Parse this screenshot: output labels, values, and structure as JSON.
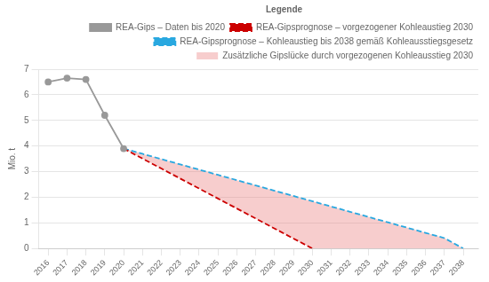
{
  "chart_data": {
    "type": "line",
    "y_label": "Mio. t",
    "legend_title": "Legende",
    "series": [
      {
        "name": "REA-Gips – Daten bis 2020",
        "color": "#999999",
        "line_style": "solid",
        "marker": "circle",
        "x": [
          2016,
          2017,
          2018,
          2019,
          2020
        ],
        "values": [
          6.5,
          6.65,
          6.6,
          5.2,
          3.9
        ]
      },
      {
        "name": "REA-Gipsprognose – vorgezogener Kohleaustieg 2030",
        "color": "#cc0000",
        "line_style": "dashed",
        "x": [
          2020,
          2021,
          2022,
          2023,
          2024,
          2025,
          2026,
          2027,
          2028,
          2029,
          2030
        ],
        "values": [
          3.9,
          3.51,
          3.12,
          2.73,
          2.34,
          1.95,
          1.56,
          1.17,
          0.78,
          0.39,
          0.0
        ]
      },
      {
        "name": "REA-Gipsprognose – Kohleaustieg bis 2038 gemäß Kohleausstiegsgesetz",
        "color": "#29a8e0",
        "line_style": "dashed",
        "x": [
          2020,
          2021,
          2022,
          2023,
          2024,
          2025,
          2026,
          2027,
          2028,
          2029,
          2030,
          2031,
          2032,
          2033,
          2034,
          2035,
          2036,
          2037,
          2038
        ],
        "values": [
          3.9,
          3.6944,
          3.4889,
          3.2833,
          3.0778,
          2.8722,
          2.6667,
          2.4611,
          2.2556,
          2.05,
          1.8444,
          1.6389,
          1.4333,
          1.2278,
          1.0222,
          0.8167,
          0.6111,
          0.4056,
          0.0
        ]
      },
      {
        "name": "Zusätzliche Gipslücke durch vorgezogenen Kohleausstieg 2030",
        "type": "area",
        "color": "#e87070"
      }
    ],
    "xlim": [
      2015.5,
      2038.8
    ],
    "xticks": [
      2016,
      2017,
      2018,
      2019,
      2020,
      2021,
      2022,
      2023,
      2024,
      2025,
      2026,
      2027,
      2028,
      2029,
      2030,
      2031,
      2032,
      2033,
      2034,
      2035,
      2036,
      2037,
      2038
    ],
    "ylim": [
      0,
      7
    ],
    "yticks": [
      0,
      1,
      2,
      3,
      4,
      5,
      6,
      7
    ],
    "grid": "y",
    "legend": "top"
  }
}
